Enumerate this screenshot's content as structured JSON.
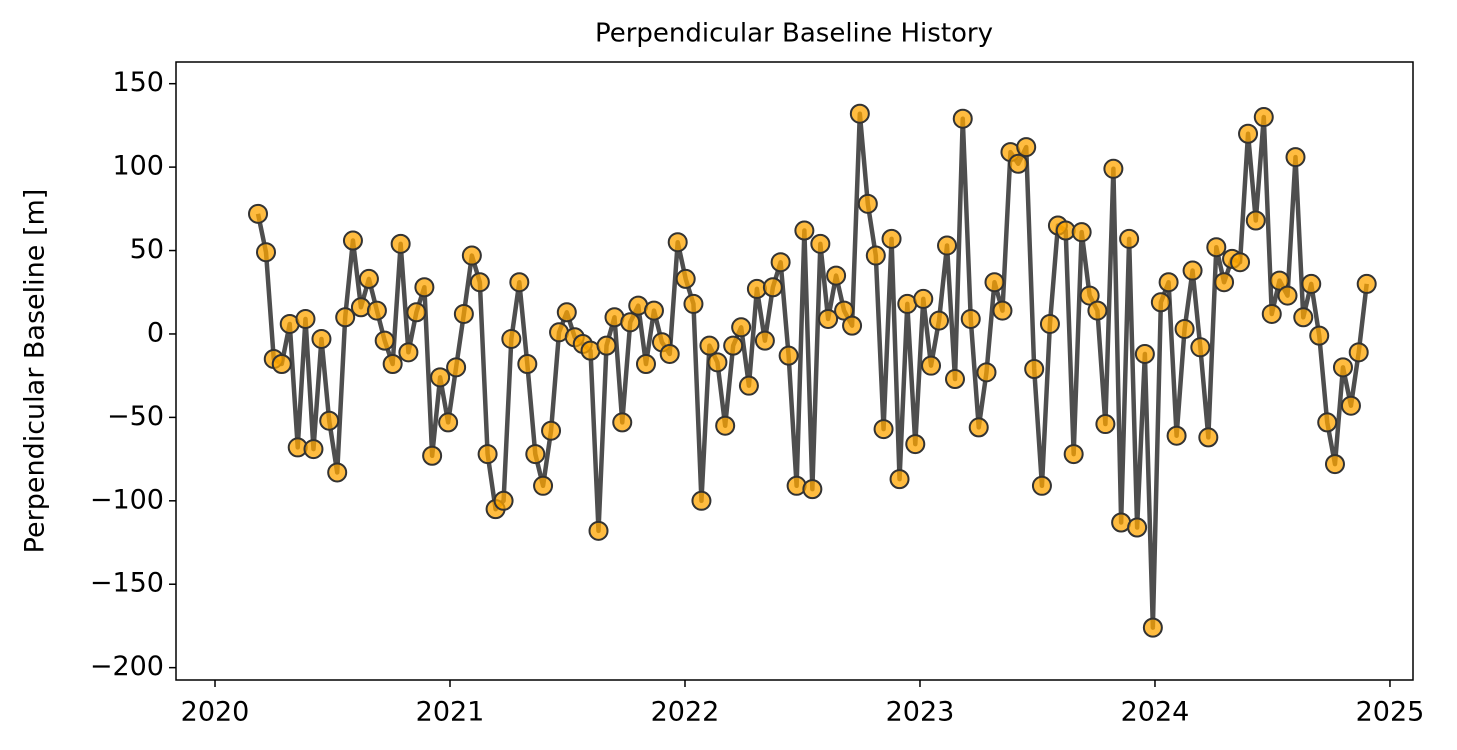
{
  "chart_data": {
    "type": "line",
    "title": "Perpendicular Baseline History",
    "ylabel": "Perpendicular Baseline [m]",
    "x": [
      2020.183,
      2020.217,
      2020.25,
      2020.284,
      2020.318,
      2020.352,
      2020.385,
      2020.419,
      2020.453,
      2020.486,
      2020.52,
      2020.554,
      2020.587,
      2020.621,
      2020.655,
      2020.689,
      2020.722,
      2020.756,
      2020.79,
      2020.823,
      2020.857,
      2020.891,
      2020.924,
      2020.958,
      2020.992,
      2021.026,
      2021.059,
      2021.093,
      2021.127,
      2021.16,
      2021.194,
      2021.228,
      2021.261,
      2021.295,
      2021.329,
      2021.363,
      2021.396,
      2021.43,
      2021.464,
      2021.497,
      2021.531,
      2021.565,
      2021.598,
      2021.632,
      2021.666,
      2021.7,
      2021.733,
      2021.767,
      2021.801,
      2021.834,
      2021.868,
      2021.902,
      2021.935,
      2021.969,
      2022.003,
      2022.036,
      2022.07,
      2022.104,
      2022.138,
      2022.171,
      2022.205,
      2022.239,
      2022.272,
      2022.306,
      2022.34,
      2022.374,
      2022.407,
      2022.441,
      2022.475,
      2022.508,
      2022.542,
      2022.576,
      2022.609,
      2022.643,
      2022.677,
      2022.711,
      2022.744,
      2022.778,
      2022.812,
      2022.845,
      2022.879,
      2022.913,
      2022.946,
      2022.98,
      2023.014,
      2023.047,
      2023.081,
      2023.115,
      2023.149,
      2023.182,
      2023.216,
      2023.25,
      2023.283,
      2023.317,
      2023.351,
      2023.385,
      2023.418,
      2023.452,
      2023.486,
      2023.519,
      2023.553,
      2023.587,
      2023.62,
      2023.654,
      2023.688,
      2023.722,
      2023.755,
      2023.789,
      2023.823,
      2023.856,
      2023.89,
      2023.924,
      2023.957,
      2023.991,
      2024.025,
      2024.058,
      2024.092,
      2024.126,
      2024.16,
      2024.193,
      2024.227,
      2024.261,
      2024.294,
      2024.328,
      2024.362,
      2024.396,
      2024.429,
      2024.463,
      2024.497,
      2024.53,
      2024.564,
      2024.598,
      2024.631,
      2024.665,
      2024.699,
      2024.733,
      2024.766,
      2024.8,
      2024.834,
      2024.867,
      2024.901
    ],
    "series": [
      {
        "color": "#ffa500",
        "edgecolor": "#333333",
        "line_color": "#444444",
        "values": [
          72,
          49,
          -15,
          -18,
          6,
          -68,
          9,
          -69,
          -3,
          -52,
          -83,
          10,
          56,
          16,
          33,
          14,
          -4,
          -18,
          54,
          -11,
          13,
          28,
          -73,
          -26,
          -53,
          -20,
          12,
          47,
          31,
          -72,
          -105,
          -100,
          -3,
          31,
          -18,
          -72,
          -91,
          -58,
          1,
          13,
          -2,
          -6,
          -10,
          -118,
          -7,
          10,
          -53,
          7,
          17,
          -18,
          14,
          -5,
          -12,
          55,
          33,
          18,
          -100,
          -7,
          -17,
          -55,
          -7,
          4,
          -31,
          27,
          -4,
          28,
          43,
          -13,
          -91,
          62,
          -93,
          54,
          9,
          35,
          14,
          5,
          132,
          78,
          47,
          -57,
          57,
          -87,
          18,
          -66,
          21,
          -19,
          8,
          53,
          -27,
          129,
          9,
          -56,
          -23,
          31,
          14,
          109,
          102,
          112,
          -21,
          -91,
          6,
          65,
          62,
          -72,
          61,
          23,
          14,
          -54,
          99,
          -113,
          57,
          -116,
          -12,
          -176,
          19,
          31,
          -61,
          3,
          38,
          -8,
          -62,
          52,
          31,
          45,
          43,
          120,
          68,
          130,
          12,
          32,
          23,
          106,
          10,
          30,
          -1,
          -53,
          -78,
          -20,
          -43,
          -11,
          30
        ]
      }
    ],
    "xlim": [
      2019.834,
      2025.098
    ],
    "xticks": [
      2020,
      2021,
      2022,
      2023,
      2024,
      2025
    ],
    "ylim": [
      -207.4,
      163
    ],
    "yticks": [
      {
        "value": -200,
        "label": "−200"
      },
      {
        "value": -150,
        "label": "−150"
      },
      {
        "value": -100,
        "label": "−100"
      },
      {
        "value": -50,
        "label": "−50"
      },
      0,
      50,
      100,
      150
    ],
    "grid": false
  }
}
